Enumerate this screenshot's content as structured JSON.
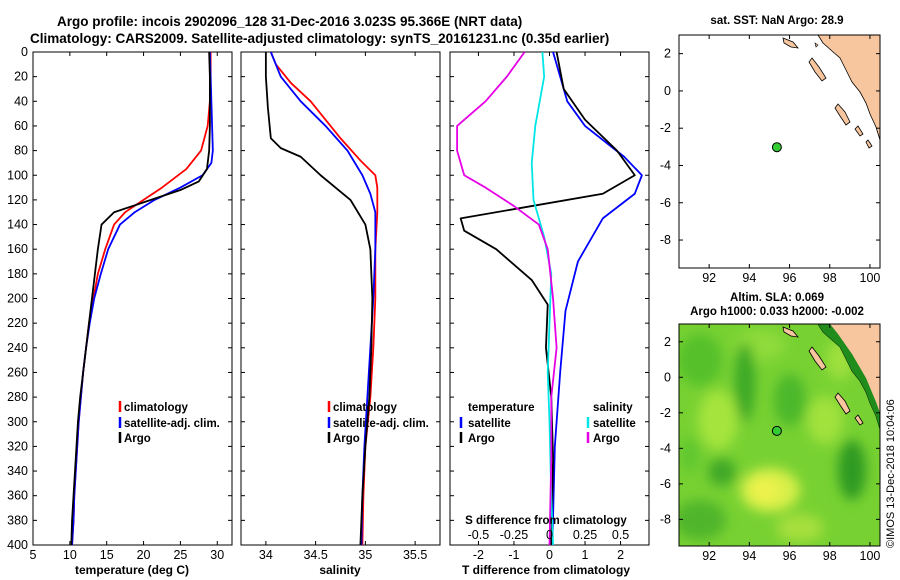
{
  "header": {
    "line1": "Argo profile: incois 2902096_128 31-Dec-2016 3.023S 95.366E (NRT data)",
    "line2": "Climatology: CARS2009. Satellite-adjusted climatology: synTS_20161231.nc (0.35d earlier)"
  },
  "colors": {
    "climatology": "#ff0000",
    "satellite": "#0000ff",
    "argo": "#000000",
    "sat_salinity": "#00e6e6",
    "argo_salinity": "#e600e6",
    "land": "#f7c69e",
    "float_marker": "#33cc33"
  },
  "depth_ticks": [
    "0",
    "20",
    "40",
    "60",
    "80",
    "100",
    "120",
    "140",
    "160",
    "180",
    "200",
    "220",
    "240",
    "260",
    "280",
    "300",
    "320",
    "340",
    "360",
    "380",
    "400"
  ],
  "chart_data": [
    {
      "type": "line",
      "id": "temperature",
      "xlabel": "temperature (deg C)",
      "ylabel": "depth",
      "xlim": [
        5,
        32
      ],
      "ylim": [
        400,
        0
      ],
      "xticks": [
        "5",
        "10",
        "15",
        "20",
        "25",
        "30"
      ],
      "legend": [
        "climatology",
        "satellite-adj. clim.",
        "Argo"
      ],
      "series": [
        {
          "name": "climatology",
          "color": "#ff0000",
          "points": [
            [
              29.1,
              0
            ],
            [
              29.1,
              20
            ],
            [
              29.0,
              40
            ],
            [
              28.7,
              60
            ],
            [
              27.8,
              80
            ],
            [
              25.8,
              95
            ],
            [
              22.5,
              110
            ],
            [
              20,
              120
            ],
            [
              17.5,
              130
            ],
            [
              16,
              140
            ],
            [
              14.8,
              160
            ],
            [
              13.8,
              180
            ],
            [
              13.2,
              200
            ],
            [
              12.6,
              220
            ],
            [
              12.2,
              240
            ],
            [
              11.8,
              260
            ],
            [
              11.5,
              280
            ],
            [
              11.2,
              300
            ],
            [
              11.0,
              320
            ],
            [
              10.8,
              340
            ],
            [
              10.6,
              360
            ],
            [
              10.5,
              380
            ],
            [
              10.3,
              400
            ]
          ]
        },
        {
          "name": "satellite-adj. clim.",
          "color": "#0000ff",
          "points": [
            [
              29.0,
              0
            ],
            [
              29.1,
              20
            ],
            [
              29.2,
              40
            ],
            [
              29.3,
              60
            ],
            [
              29.4,
              80
            ],
            [
              29.2,
              90
            ],
            [
              28.0,
              100
            ],
            [
              25,
              110
            ],
            [
              21.5,
              120
            ],
            [
              18.8,
              130
            ],
            [
              16.8,
              140
            ],
            [
              15.2,
              160
            ],
            [
              14.2,
              180
            ],
            [
              13.3,
              200
            ],
            [
              12.7,
              220
            ],
            [
              12.2,
              240
            ],
            [
              11.8,
              260
            ],
            [
              11.5,
              280
            ],
            [
              11.2,
              300
            ],
            [
              11.0,
              320
            ],
            [
              10.8,
              340
            ],
            [
              10.6,
              360
            ],
            [
              10.5,
              380
            ],
            [
              10.3,
              400
            ]
          ]
        },
        {
          "name": "Argo",
          "color": "#000000",
          "points": [
            [
              28.9,
              0
            ],
            [
              29.0,
              20
            ],
            [
              29.0,
              40
            ],
            [
              29.0,
              60
            ],
            [
              28.9,
              80
            ],
            [
              28.6,
              95
            ],
            [
              27.5,
              105
            ],
            [
              25,
              112
            ],
            [
              21,
              120
            ],
            [
              16,
              130
            ],
            [
              14.3,
              140
            ],
            [
              13.8,
              160
            ],
            [
              13.4,
              180
            ],
            [
              13.0,
              200
            ],
            [
              12.6,
              220
            ],
            [
              12.2,
              240
            ],
            [
              11.8,
              260
            ],
            [
              11.4,
              280
            ],
            [
              11.1,
              300
            ],
            [
              10.9,
              320
            ],
            [
              10.7,
              340
            ],
            [
              10.5,
              360
            ],
            [
              10.3,
              380
            ],
            [
              10.2,
              400
            ]
          ]
        }
      ]
    },
    {
      "type": "line",
      "id": "salinity",
      "xlabel": "salinity",
      "ylabel": "depth",
      "xlim": [
        33.75,
        35.75
      ],
      "ylim": [
        400,
        0
      ],
      "xticks": [
        "34",
        "34.5",
        "35",
        "35.5"
      ],
      "legend": [
        "climatology",
        "satellite-adj. clim.",
        "Argo"
      ],
      "series": [
        {
          "name": "climatology",
          "color": "#ff0000",
          "points": [
            [
              34.05,
              0
            ],
            [
              34.1,
              10
            ],
            [
              34.25,
              25
            ],
            [
              34.45,
              40
            ],
            [
              34.6,
              55
            ],
            [
              34.75,
              70
            ],
            [
              34.95,
              88
            ],
            [
              35.1,
              100
            ],
            [
              35.12,
              110
            ],
            [
              35.12,
              130
            ],
            [
              35.1,
              160
            ],
            [
              35.1,
              200
            ],
            [
              35.08,
              240
            ],
            [
              35.05,
              280
            ],
            [
              35.0,
              320
            ],
            [
              34.98,
              360
            ],
            [
              34.97,
              400
            ]
          ]
        },
        {
          "name": "satellite-adj. clim.",
          "color": "#0000ff",
          "points": [
            [
              34.05,
              0
            ],
            [
              34.15,
              20
            ],
            [
              34.35,
              40
            ],
            [
              34.6,
              60
            ],
            [
              34.82,
              80
            ],
            [
              34.97,
              100
            ],
            [
              35.05,
              115
            ],
            [
              35.1,
              130
            ],
            [
              35.1,
              160
            ],
            [
              35.08,
              200
            ],
            [
              35.05,
              240
            ],
            [
              35.02,
              280
            ],
            [
              34.99,
              320
            ],
            [
              34.97,
              360
            ],
            [
              34.96,
              400
            ]
          ]
        },
        {
          "name": "Argo",
          "color": "#000000",
          "points": [
            [
              34.0,
              0
            ],
            [
              34.0,
              20
            ],
            [
              34.02,
              45
            ],
            [
              34.05,
              70
            ],
            [
              34.15,
              78
            ],
            [
              34.35,
              85
            ],
            [
              34.55,
              100
            ],
            [
              34.85,
              120
            ],
            [
              35.0,
              140
            ],
            [
              35.05,
              160
            ],
            [
              35.07,
              200
            ],
            [
              35.06,
              240
            ],
            [
              35.04,
              280
            ],
            [
              35.0,
              320
            ],
            [
              34.97,
              360
            ],
            [
              34.95,
              400
            ]
          ]
        }
      ]
    },
    {
      "type": "line",
      "id": "differences",
      "xlabel": "T difference from climatology",
      "xlabel_top": "S difference from climatology",
      "xlim": [
        -2.8,
        2.8
      ],
      "ylim": [
        400,
        0
      ],
      "xticks": [
        "-2",
        "-1",
        "0",
        "1",
        "2"
      ],
      "xticks_top": [
        "-0.5",
        "-0.25",
        "0",
        "0.25",
        "0.5"
      ],
      "legend_left": {
        "title": "temperature",
        "items": [
          "satellite",
          "Argo"
        ]
      },
      "legend_right": {
        "title": "salinity",
        "items": [
          "satellite",
          "Argo"
        ]
      },
      "series": [
        {
          "name": "temperature satellite",
          "color": "#0000ff",
          "points": [
            [
              0.1,
              0
            ],
            [
              0.3,
              20
            ],
            [
              0.5,
              40
            ],
            [
              1.0,
              60
            ],
            [
              2.1,
              85
            ],
            [
              2.6,
              100
            ],
            [
              2.4,
              115
            ],
            [
              1.5,
              135
            ],
            [
              0.8,
              170
            ],
            [
              0.45,
              210
            ],
            [
              0.3,
              260
            ],
            [
              0.15,
              320
            ],
            [
              0.08,
              400
            ]
          ]
        },
        {
          "name": "temperature Argo",
          "color": "#000000",
          "points": [
            [
              0.2,
              0
            ],
            [
              0.4,
              30
            ],
            [
              1.0,
              55
            ],
            [
              1.9,
              80
            ],
            [
              2.4,
              100
            ],
            [
              1.5,
              115
            ],
            [
              -0.5,
              125
            ],
            [
              -2.5,
              135
            ],
            [
              -2.4,
              145
            ],
            [
              -1.5,
              160
            ],
            [
              -0.5,
              185
            ],
            [
              -0.05,
              205
            ],
            [
              -0.1,
              240
            ],
            [
              0.05,
              280
            ],
            [
              0.1,
              330
            ],
            [
              0.05,
              400
            ]
          ]
        },
        {
          "name": "salinity satellite",
          "color": "#00e6e6",
          "points": [
            [
              -0.2,
              0
            ],
            [
              -0.15,
              20
            ],
            [
              -0.4,
              60
            ],
            [
              -0.5,
              90
            ],
            [
              -0.45,
              120
            ],
            [
              -0.15,
              150
            ],
            [
              0.05,
              180
            ],
            [
              0.0,
              220
            ],
            [
              -0.05,
              260
            ],
            [
              0.0,
              300
            ],
            [
              0.05,
              360
            ],
            [
              0.1,
              400
            ]
          ]
        },
        {
          "name": "salinity Argo",
          "color": "#e600e6",
          "points": [
            [
              -0.7,
              0
            ],
            [
              -1.2,
              20
            ],
            [
              -1.8,
              40
            ],
            [
              -2.6,
              60
            ],
            [
              -2.6,
              80
            ],
            [
              -2.4,
              100
            ],
            [
              -1.8,
              110
            ],
            [
              -1.0,
              125
            ],
            [
              -0.3,
              140
            ],
            [
              -0.05,
              160
            ],
            [
              0.1,
              200
            ],
            [
              0.2,
              240
            ],
            [
              0.05,
              280
            ],
            [
              0.05,
              330
            ],
            [
              0.0,
              400
            ]
          ]
        }
      ]
    },
    {
      "type": "scatter",
      "id": "map_sst",
      "title": "sat. SST: NaN Argo: 28.9",
      "xlim": [
        90.5,
        100.5
      ],
      "ylim": [
        -9.5,
        3
      ],
      "xticks": [
        "92",
        "94",
        "96",
        "98",
        "100"
      ],
      "yticks": [
        "2",
        "0",
        "-2",
        "-4",
        "-6",
        "-8"
      ],
      "float": [
        95.37,
        -3.02
      ]
    },
    {
      "type": "heatmap",
      "id": "map_sla",
      "title": "Altim. SLA: 0.069",
      "subtitle": "Argo h1000: 0.033 h2000: -0.002",
      "xlim": [
        90.5,
        100.5
      ],
      "ylim": [
        -9.5,
        3
      ],
      "xticks": [
        "92",
        "94",
        "96",
        "98",
        "100"
      ],
      "yticks": [
        "2",
        "0",
        "-2",
        "-4",
        "-6",
        "-8"
      ],
      "float": [
        95.37,
        -3.02
      ]
    }
  ],
  "watermark": "©IMOS 13-Dec-2018 10:04:06"
}
